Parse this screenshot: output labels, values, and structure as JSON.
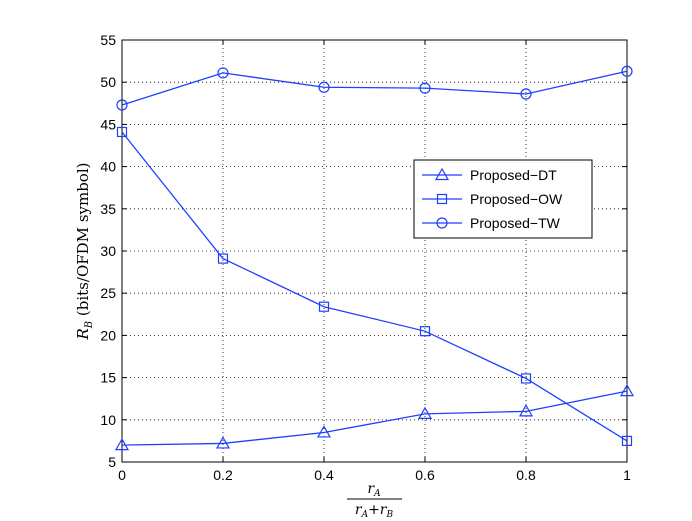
{
  "chart_data": {
    "type": "line",
    "x": [
      0,
      0.2,
      0.4,
      0.6,
      0.8,
      1
    ],
    "series": [
      {
        "name": "Proposed−DT",
        "marker": "triangle",
        "values": [
          7.0,
          7.2,
          8.5,
          10.7,
          11.0,
          13.4
        ]
      },
      {
        "name": "Proposed−OW",
        "marker": "square",
        "values": [
          44.1,
          29.1,
          23.4,
          20.5,
          14.9,
          7.5
        ]
      },
      {
        "name": "Proposed−TW",
        "marker": "circle",
        "values": [
          47.3,
          51.1,
          49.4,
          49.3,
          48.6,
          51.3
        ]
      }
    ],
    "xlim": [
      0,
      1
    ],
    "ylim": [
      5,
      55
    ],
    "xticks": [
      "0",
      "0.2",
      "0.4",
      "0.6",
      "0.8",
      "1"
    ],
    "yticks": [
      "5",
      "10",
      "15",
      "20",
      "25",
      "30",
      "35",
      "40",
      "45",
      "50",
      "55"
    ],
    "ylabel": {
      "main": "R",
      "sub": "B",
      "rest": " (bits/OFDM symbol)"
    },
    "xlabel": {
      "num_main": "r",
      "num_sub": "A",
      "den_a": "r",
      "den_a_sub": "A",
      "den_plus": "+",
      "den_b": "r",
      "den_b_sub": "B"
    },
    "grid": true,
    "legend_position": "right-middle",
    "line_color": "#1f3fff"
  }
}
